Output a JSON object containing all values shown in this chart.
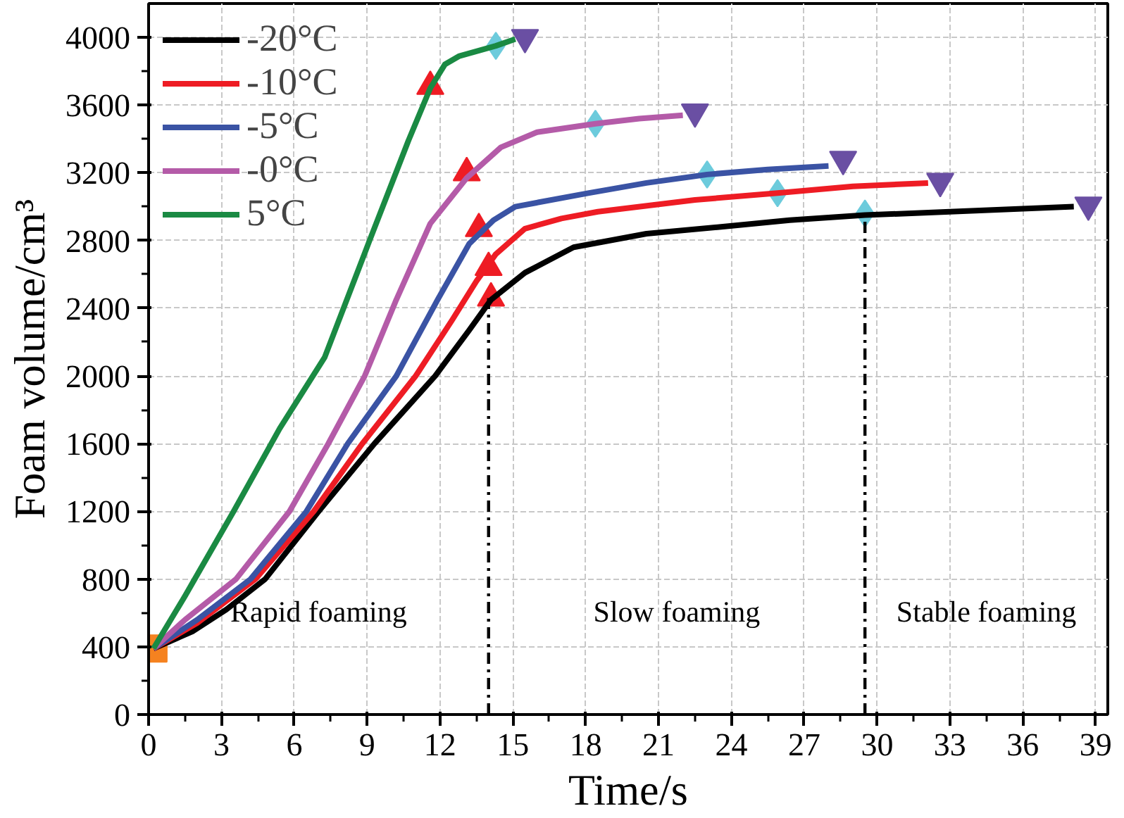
{
  "chart_data": {
    "type": "line",
    "xlabel": "Time/s",
    "ylabel": "Foam volume/cm³",
    "xlim": [
      0,
      39.5
    ],
    "ylim": [
      0,
      4200
    ],
    "xticks": [
      0,
      3,
      6,
      9,
      12,
      15,
      18,
      21,
      24,
      27,
      30,
      33,
      36,
      39
    ],
    "yticks": [
      0,
      400,
      800,
      1200,
      1600,
      2000,
      2400,
      2800,
      3200,
      3600,
      4000
    ],
    "grid": true,
    "legend": "top left",
    "line_style": "solid",
    "series": [
      {
        "name": "-20°C",
        "color": "#000000",
        "x": [
          0.2,
          1.8,
          3.2,
          4.8,
          7.0,
          9.3,
          11.8,
          13.2,
          14.1,
          15.5,
          17.5,
          20.5,
          23.5,
          26.4,
          29.5,
          33,
          38.1
        ],
        "values": [
          390,
          490,
          620,
          800,
          1200,
          1600,
          2000,
          2270,
          2450,
          2610,
          2760,
          2840,
          2880,
          2920,
          2950,
          2970,
          3000
        ]
      },
      {
        "name": "-10°C",
        "color": "#ee1c24",
        "x": [
          0.2,
          2,
          4.4,
          6.8,
          8.8,
          11.0,
          12.5,
          13.5,
          14.3,
          15.5,
          17,
          18.5,
          22.5,
          25.9,
          29,
          32.1
        ],
        "values": [
          390,
          540,
          800,
          1200,
          1600,
          2000,
          2330,
          2560,
          2720,
          2870,
          2930,
          2970,
          3040,
          3080,
          3120,
          3140
        ]
      },
      {
        "name": "-5°C",
        "color": "#3a53a4",
        "x": [
          0.2,
          2,
          4.2,
          6.5,
          8.2,
          10.2,
          11.9,
          13.2,
          14.2,
          15.1,
          18.1,
          20.5,
          23.0,
          25.5,
          28.0
        ],
        "values": [
          390,
          560,
          800,
          1200,
          1600,
          2000,
          2450,
          2780,
          2920,
          3000,
          3080,
          3140,
          3190,
          3220,
          3240
        ]
      },
      {
        "name": "-0°C",
        "color": "#b45ba8",
        "x": [
          0.2,
          1.5,
          3.6,
          5.8,
          7.4,
          8.9,
          10.2,
          11.6,
          13.1,
          14.5,
          16.0,
          18.4,
          20.2,
          22.0
        ],
        "values": [
          390,
          560,
          800,
          1200,
          1600,
          2000,
          2450,
          2900,
          3170,
          3350,
          3440,
          3490,
          3520,
          3540
        ]
      },
      {
        "name": "5°C",
        "color": "#1a8a43",
        "x": [
          0.2,
          1.5,
          3.5,
          5.4,
          7.25,
          9.1,
          10.7,
          11.6,
          12.2,
          12.8,
          14.3,
          15.1
        ],
        "values": [
          390,
          700,
          1200,
          1690,
          2110,
          2800,
          3390,
          3700,
          3840,
          3890,
          3950,
          3990
        ]
      },
      {
        "type": "line",
        "color": "#000000",
        "line_style": "dashed",
        "x": [
          14.0,
          14.0
        ],
        "values": [
          0,
          2460
        ]
      },
      {
        "type": "line",
        "color": "#000000",
        "line_style": "dashed",
        "x": [
          29.5,
          29.5
        ],
        "values": [
          0,
          2950
        ]
      },
      {
        "type": "scatter",
        "marker": "square",
        "color": "#f58220",
        "x": [
          0.2
        ],
        "values": [
          390
        ]
      },
      {
        "type": "scatter",
        "marker": "triangle",
        "color": "#ee1c24",
        "x": [
          11.6,
          13.1,
          13.6,
          14.0,
          14.1
        ],
        "values": [
          3710,
          3200,
          2870,
          2640,
          2460
        ]
      },
      {
        "type": "scatter",
        "marker": "diamond",
        "color": "#6ccbdc",
        "x": [
          14.3,
          18.4,
          23.0,
          25.9,
          29.5
        ],
        "values": [
          3950,
          3490,
          3190,
          3080,
          2960
        ]
      },
      {
        "type": "scatter",
        "color": "#6a4fa3",
        "x": [
          15.5,
          22.5,
          28.6,
          32.6,
          38.7
        ],
        "values": [
          4000,
          3560,
          3280,
          3150,
          3010
        ]
      }
    ],
    "annotations": [
      "Rapid foaming",
      "Slow foaming",
      "Stable foaming"
    ]
  }
}
